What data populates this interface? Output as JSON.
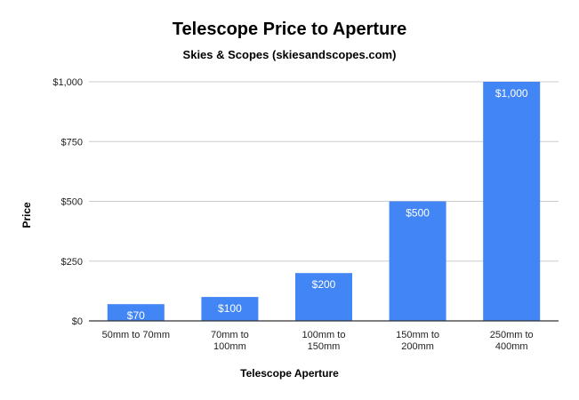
{
  "chart_data": {
    "type": "bar",
    "title": "Telescope Price to Aperture",
    "subtitle": "Skies & Scopes (skiesandscopes.com)",
    "xlabel": "Telescope Aperture",
    "ylabel": "Price",
    "categories": [
      [
        "50mm to 70mm"
      ],
      [
        "70mm to",
        "100mm"
      ],
      [
        "100mm to",
        "150mm"
      ],
      [
        "150mm to",
        "200mm"
      ],
      [
        "250mm to",
        "400mm"
      ]
    ],
    "values": [
      70,
      100,
      200,
      500,
      1000
    ],
    "data_labels": [
      "$70",
      "$100",
      "$200",
      "$500",
      "$1,000"
    ],
    "ylim": [
      0,
      1000
    ],
    "yticks": [
      0,
      250,
      500,
      750,
      1000
    ],
    "ytick_labels": [
      "$0",
      "$250",
      "$500",
      "$750",
      "$1,000"
    ],
    "grid": true,
    "legend": "none",
    "bar_color": "#4285f4",
    "grid_color": "#cccccc",
    "axis_color": "#333333"
  }
}
